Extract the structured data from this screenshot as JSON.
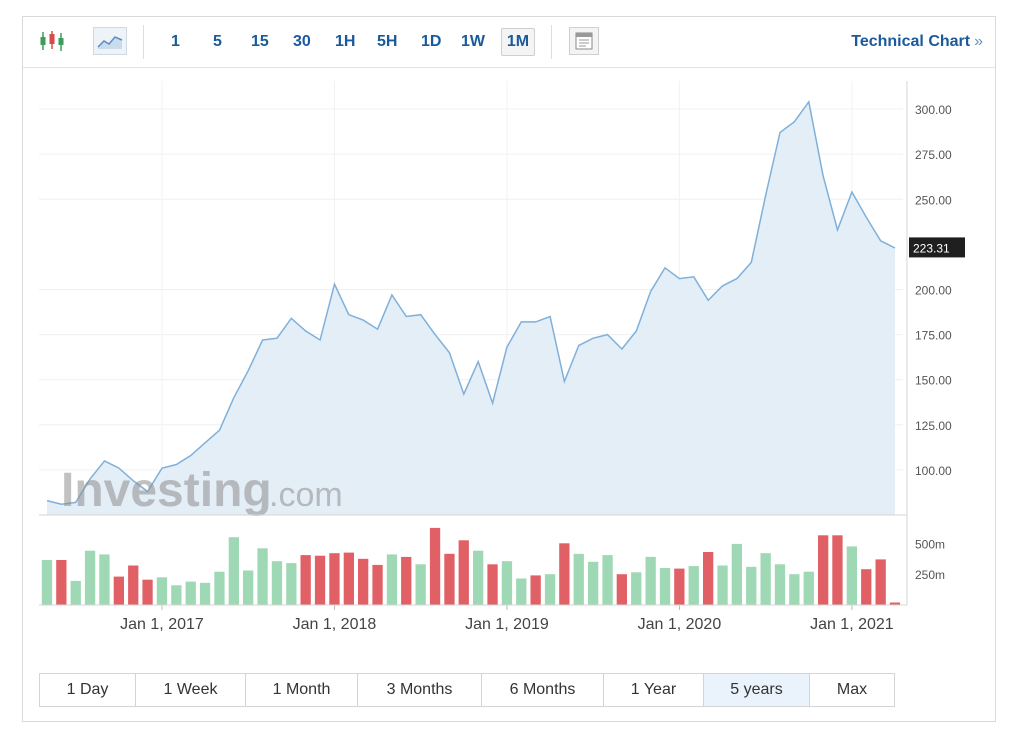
{
  "toolbar": {
    "candlestick_icon": "candlestick-icon",
    "area_icon": "area-chart-icon",
    "intervals": [
      "1",
      "5",
      "15",
      "30",
      "1H",
      "5H",
      "1D",
      "1W",
      "1M"
    ],
    "active_interval": "1M",
    "settings_icon": "table-settings-icon",
    "technical_chart_label": "Technical Chart",
    "technical_chart_arrow": "»"
  },
  "watermark": {
    "main": "Investing",
    "suffix": ".com"
  },
  "chart_data": {
    "type": "area",
    "x_labels": [
      "Jan 1, 2017",
      "Jan 1, 2018",
      "Jan 1, 2019",
      "Jan 1, 2020",
      "Jan 1, 2021"
    ],
    "y_ticks": [
      "300.00",
      "275.00",
      "250.00",
      "223.31",
      "200.00",
      "175.00",
      "150.00",
      "125.00",
      "100.00"
    ],
    "ylim": [
      75,
      310
    ],
    "current_value": "223.31",
    "line_color": "#7fb0da",
    "fill_color": "#e4eef7",
    "price": [
      83,
      81,
      82,
      95,
      105,
      101,
      94,
      88,
      101,
      103,
      108,
      115,
      122,
      140,
      155,
      172,
      173,
      184,
      177,
      172,
      203,
      186,
      183,
      178,
      197,
      185,
      186,
      175,
      165,
      142,
      160,
      137,
      168,
      182,
      182,
      185,
      149,
      169,
      173,
      175,
      167,
      177,
      199,
      212,
      206,
      207,
      194,
      202,
      206,
      215,
      252,
      287,
      293,
      304,
      263,
      233,
      254,
      240,
      227,
      223
    ],
    "volume_ticks": [
      "500m",
      "250m"
    ],
    "volume_max": 600,
    "volume_up_color": "#9fd8b4",
    "volume_down_color": "#e06066",
    "volume": [
      365,
      365,
      195,
      440,
      410,
      230,
      320,
      205,
      225,
      160,
      190,
      180,
      270,
      550,
      280,
      460,
      355,
      340,
      405,
      400,
      420,
      425,
      375,
      325,
      410,
      390,
      330,
      625,
      415,
      525,
      440,
      330,
      355,
      215,
      240,
      250,
      500,
      415,
      350,
      405,
      250,
      265,
      390,
      300,
      295,
      315,
      430,
      320,
      495,
      310,
      420,
      330,
      250,
      270,
      565,
      565,
      475,
      290,
      370,
      20
    ],
    "volume_dir": [
      "u",
      "d",
      "u",
      "u",
      "u",
      "d",
      "d",
      "d",
      "u",
      "u",
      "u",
      "u",
      "u",
      "u",
      "u",
      "u",
      "u",
      "u",
      "d",
      "d",
      "d",
      "d",
      "d",
      "d",
      "u",
      "d",
      "u",
      "d",
      "d",
      "d",
      "u",
      "d",
      "u",
      "u",
      "d",
      "u",
      "d",
      "u",
      "u",
      "u",
      "d",
      "u",
      "u",
      "u",
      "d",
      "u",
      "d",
      "u",
      "u",
      "u",
      "u",
      "u",
      "u",
      "u",
      "d",
      "d",
      "u",
      "d",
      "d",
      "d"
    ]
  },
  "timeframes": [
    "1 Day",
    "1 Week",
    "1 Month",
    "3 Months",
    "6 Months",
    "1 Year",
    "5 years",
    "Max"
  ],
  "active_timeframe": "5 years"
}
